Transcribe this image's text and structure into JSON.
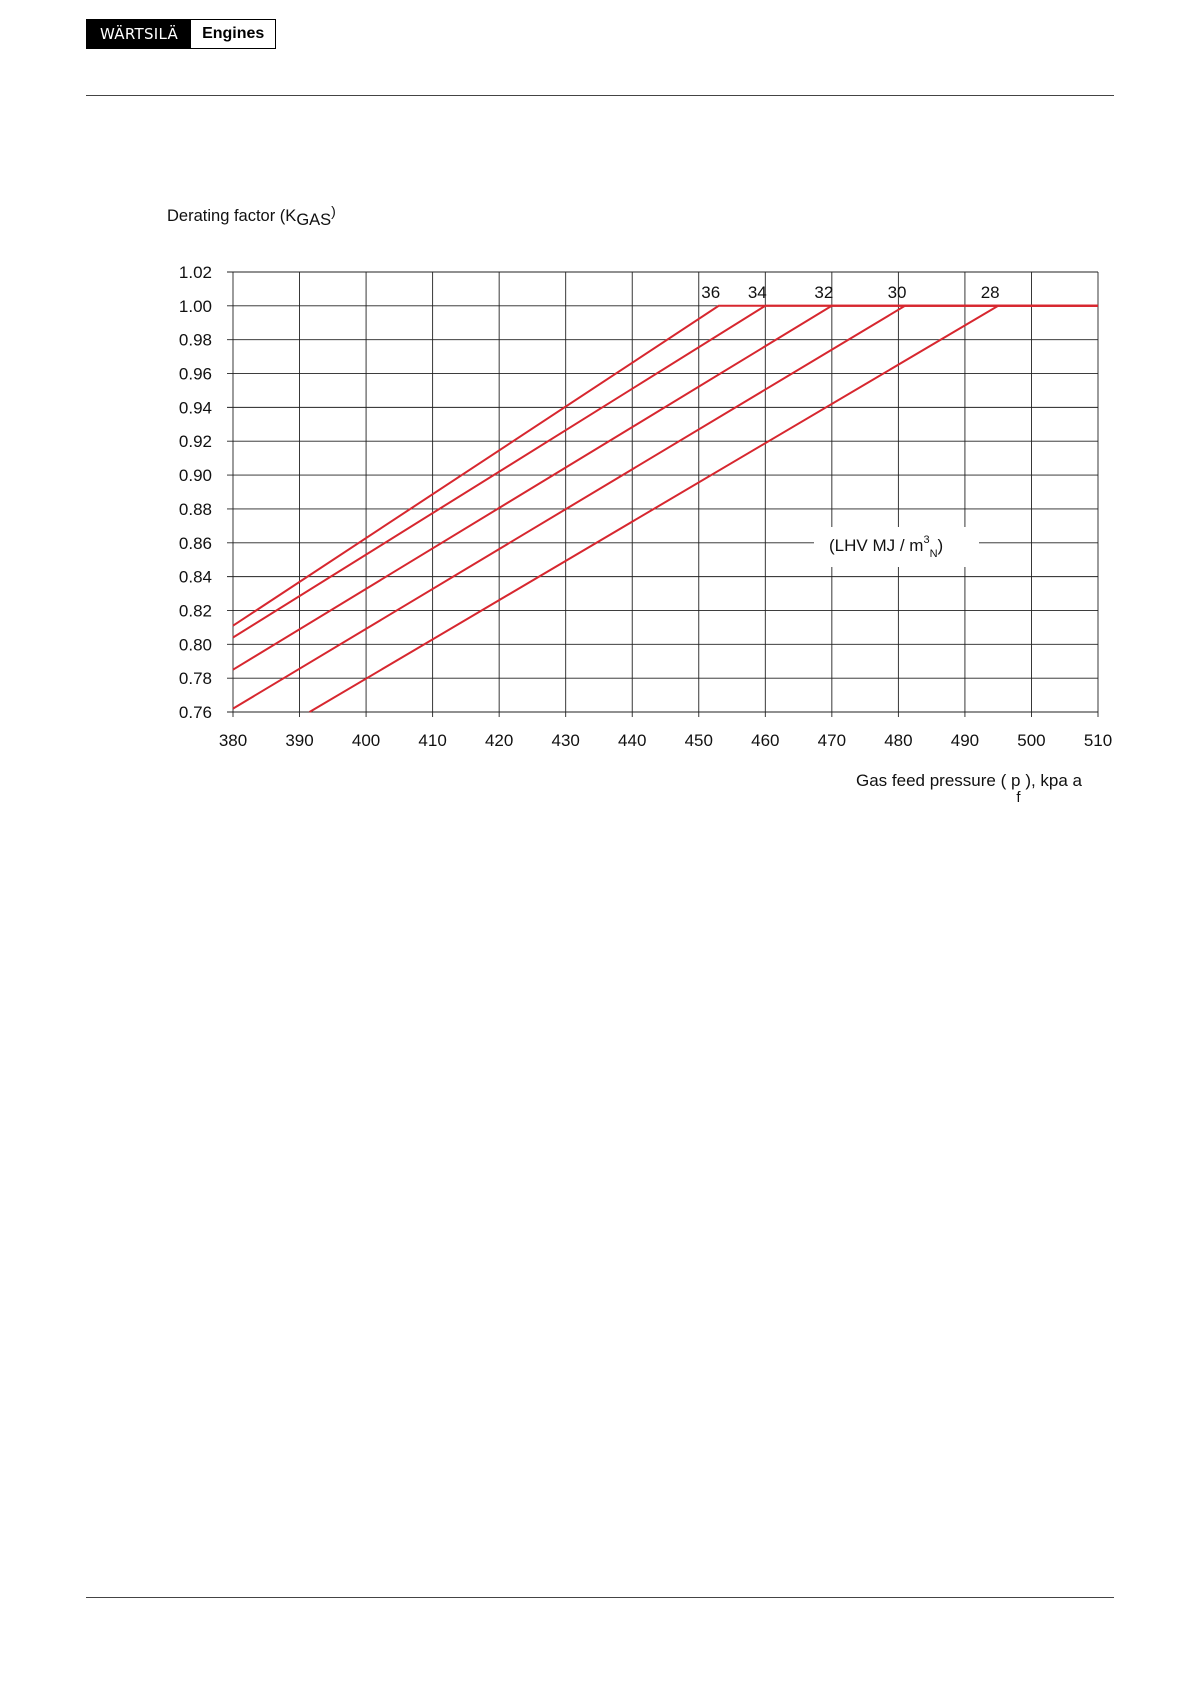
{
  "header": {
    "brand_name": "WÄRTSILÄ",
    "brand_product": "Engines"
  },
  "chart_data": {
    "type": "line",
    "ylabel": "Derating factor (K",
    "ylabel_sub": "GAS",
    "ylabel_close": ")",
    "xlabel": "Gas feed pressure ( p",
    "xlabel_sub": "f",
    "xlabel_tail": " ), kpa a",
    "annotation": {
      "text": "(LHV MJ / m",
      "sup": "3",
      "sub": "N",
      "close": ")"
    },
    "xlim": [
      380,
      510
    ],
    "ylim": [
      0.76,
      1.02
    ],
    "x_ticks": [
      380,
      390,
      400,
      410,
      420,
      430,
      440,
      450,
      460,
      470,
      480,
      490,
      500,
      510
    ],
    "y_ticks": [
      "1.02",
      "1.00",
      "0.98",
      "0.96",
      "0.94",
      "0.92",
      "0.90",
      "0.88",
      "0.86",
      "0.84",
      "0.82",
      "0.80",
      "0.78",
      "0.76"
    ],
    "grid": true,
    "line_color": "#d7272f",
    "series": [
      {
        "name": "36",
        "points": [
          [
            380,
            0.811
          ],
          [
            453,
            1.0
          ],
          [
            510,
            1.0
          ]
        ]
      },
      {
        "name": "34",
        "points": [
          [
            380,
            0.804
          ],
          [
            460,
            1.0
          ],
          [
            510,
            1.0
          ]
        ]
      },
      {
        "name": "32",
        "points": [
          [
            380,
            0.785
          ],
          [
            470,
            1.0
          ],
          [
            510,
            1.0
          ]
        ]
      },
      {
        "name": "30",
        "points": [
          [
            380,
            0.762
          ],
          [
            481,
            1.0
          ],
          [
            510,
            1.0
          ]
        ]
      },
      {
        "name": "28",
        "points": [
          [
            391.5,
            0.76
          ],
          [
            495,
            1.0
          ],
          [
            510,
            1.0
          ]
        ]
      }
    ]
  }
}
